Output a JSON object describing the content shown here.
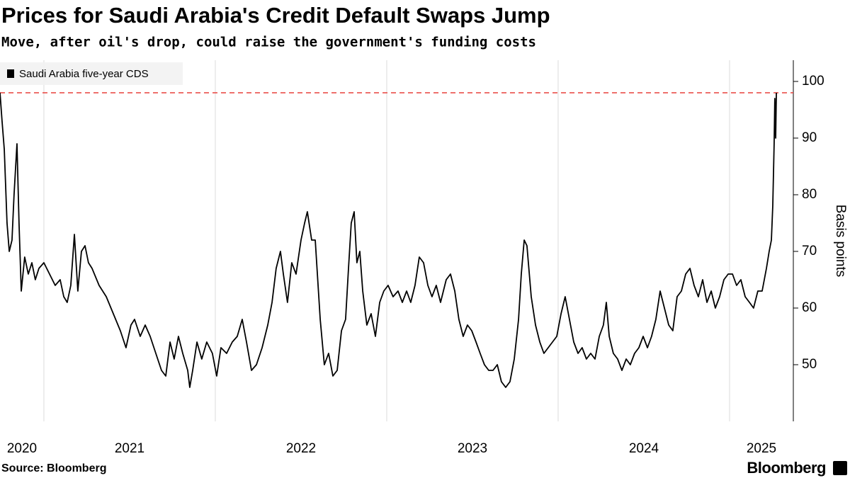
{
  "chart_data": {
    "type": "line",
    "title": "Prices for Saudi Arabia's Credit Default Swaps Jump",
    "subtitle": "Move, after oil's drop, could raise the government's funding costs",
    "y_axis_label": "Basis points",
    "source": "Source: Bloomberg",
    "logo": "Bloomberg",
    "x": [
      2020.744,
      2020.756,
      2020.769,
      2020.785,
      2020.798,
      2020.814,
      2020.826,
      2020.843,
      2020.855,
      2020.868,
      2020.888,
      2020.909,
      2020.93,
      2020.95,
      2020.971,
      2021.0,
      2021.033,
      2021.066,
      2021.095,
      2021.116,
      2021.136,
      2021.157,
      2021.178,
      2021.198,
      2021.219,
      2021.24,
      2021.26,
      2021.281,
      2021.322,
      2021.364,
      2021.405,
      2021.446,
      2021.479,
      2021.508,
      2021.529,
      2021.562,
      2021.591,
      2021.62,
      2021.653,
      2021.686,
      2021.711,
      2021.736,
      2021.76,
      2021.785,
      2021.81,
      2021.839,
      2021.851,
      2021.868,
      2021.893,
      2021.921,
      2021.95,
      2021.983,
      2022.008,
      2022.033,
      2022.066,
      2022.099,
      2022.128,
      2022.157,
      2022.182,
      2022.211,
      2022.24,
      2022.273,
      2022.306,
      2022.331,
      2022.355,
      2022.38,
      2022.397,
      2022.421,
      2022.446,
      2022.471,
      2022.5,
      2022.521,
      2022.537,
      2022.562,
      2022.583,
      2022.612,
      2022.636,
      2022.661,
      2022.686,
      2022.711,
      2022.736,
      2022.76,
      2022.777,
      2022.793,
      2022.81,
      2022.826,
      2022.843,
      2022.86,
      2022.884,
      2022.909,
      2022.934,
      2022.959,
      2022.983,
      2023.008,
      2023.037,
      2023.066,
      2023.091,
      2023.116,
      2023.14,
      2023.165,
      2023.19,
      2023.215,
      2023.24,
      2023.264,
      2023.289,
      2023.314,
      2023.347,
      2023.372,
      2023.397,
      2023.421,
      2023.446,
      2023.471,
      2023.496,
      2023.521,
      2023.545,
      2023.57,
      2023.595,
      2023.62,
      2023.645,
      2023.669,
      2023.694,
      2023.719,
      2023.744,
      2023.769,
      2023.785,
      2023.802,
      2023.818,
      2023.843,
      2023.868,
      2023.893,
      2023.917,
      2023.942,
      2023.967,
      2023.992,
      2024.017,
      2024.041,
      2024.066,
      2024.091,
      2024.116,
      2024.14,
      2024.165,
      2024.19,
      2024.215,
      2024.24,
      2024.264,
      2024.281,
      2024.298,
      2024.322,
      2024.347,
      2024.372,
      2024.397,
      2024.421,
      2024.446,
      2024.471,
      2024.496,
      2024.521,
      2024.545,
      2024.57,
      2024.595,
      2024.62,
      2024.645,
      2024.669,
      2024.694,
      2024.719,
      2024.744,
      2024.769,
      2024.793,
      2024.818,
      2024.843,
      2024.868,
      2024.893,
      2024.917,
      2024.942,
      2024.967,
      2024.992,
      2025.017,
      2025.041,
      2025.066,
      2025.091,
      2025.116,
      2025.14,
      2025.165,
      2025.19,
      2025.215,
      2025.231,
      2025.244,
      2025.252,
      2025.26,
      2025.264,
      2025.269,
      2025.273
    ],
    "series": [
      {
        "name": "Saudi Arabia five-year CDS",
        "color": "#000000",
        "values": [
          98,
          93,
          88,
          75,
          70,
          72,
          80,
          89,
          75,
          63,
          69,
          66,
          68,
          65,
          67,
          68,
          66,
          64,
          65,
          62,
          61,
          64,
          73,
          63,
          70,
          71,
          68,
          67,
          64,
          62,
          59,
          56,
          53,
          57,
          58,
          55,
          57,
          55,
          52,
          49,
          48,
          54,
          51,
          55,
          52,
          49,
          46,
          49,
          54,
          51,
          54,
          52,
          48,
          53,
          52,
          54,
          55,
          58,
          54,
          49,
          50,
          53,
          57,
          61,
          67,
          70,
          66,
          61,
          68,
          66,
          72,
          75,
          77,
          72,
          72,
          58,
          50,
          52,
          48,
          49,
          56,
          58,
          67,
          75,
          77,
          68,
          70,
          63,
          57,
          59,
          55,
          61,
          63,
          64,
          62,
          63,
          61,
          63,
          61,
          64,
          69,
          68,
          64,
          62,
          64,
          61,
          65,
          66,
          63,
          58,
          55,
          57,
          56,
          54,
          52,
          50,
          49,
          49,
          50,
          47,
          46,
          47,
          51,
          58,
          66,
          72,
          71,
          62,
          57,
          54,
          52,
          53,
          54,
          55,
          59,
          62,
          58,
          54,
          52,
          53,
          51,
          52,
          51,
          55,
          57,
          61,
          55,
          52,
          51,
          49,
          51,
          50,
          52,
          53,
          55,
          53,
          55,
          58,
          63,
          60,
          57,
          56,
          62,
          63,
          66,
          67,
          64,
          62,
          65,
          61,
          63,
          60,
          62,
          65,
          66,
          66,
          64,
          65,
          62,
          61,
          60,
          63,
          63,
          67,
          70,
          72,
          78,
          89,
          97,
          90,
          98
        ]
      }
    ],
    "xlim": [
      2020.744,
      2025.372
    ],
    "xticks": [
      2020,
      2021,
      2022,
      2023,
      2024,
      2025
    ],
    "ylim": [
      40,
      103.75
    ],
    "yticks": [
      50,
      60,
      70,
      80,
      90,
      100
    ],
    "reference_line": {
      "value": 98,
      "color": "#e8413c"
    },
    "grid": "x",
    "y_axis_side": "right",
    "legend": "top-left"
  }
}
